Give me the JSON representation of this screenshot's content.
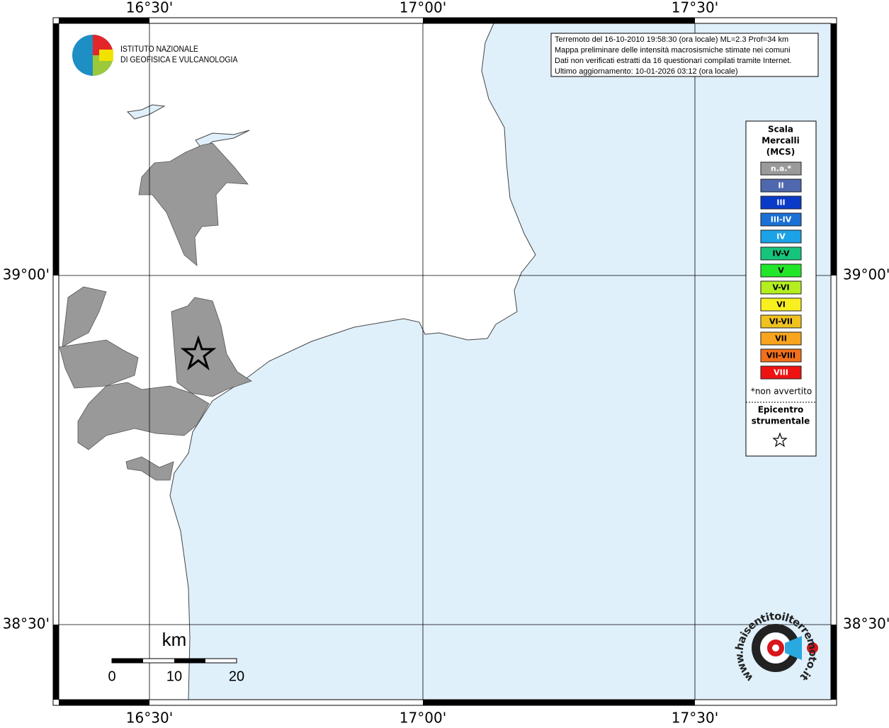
{
  "logo": {
    "lines": [
      "ISTITUTO NAZIONALE",
      "DI GEOFISICA E VULCANOLOGIA"
    ]
  },
  "info": [
    "Terremoto del 16-10-2010 19:58:30 (ora locale) ML=2.3 Prof=34 km",
    "Mappa preliminare delle intensità macrosismiche stimate nei comuni",
    "Dati non verificati estratti da 16 questionari compilati tramite Internet.",
    "Ultimo aggiornamento: 10-01-2026 03:12 (ora locale)"
  ],
  "lon_labels": [
    "16°30'",
    "17°00'",
    "17°30'"
  ],
  "lat_labels": [
    "39°00'",
    "38°30'"
  ],
  "legend": {
    "title": [
      "Scala",
      "Mercalli",
      "(MCS)"
    ],
    "entries": [
      {
        "label": "n.a.*",
        "color": "#9a9a9a"
      },
      {
        "label": "II",
        "color": "#4f68ae"
      },
      {
        "label": "III",
        "color": "#0a3ac8"
      },
      {
        "label": "III-IV",
        "color": "#1a70d4"
      },
      {
        "label": "IV",
        "color": "#1ca2e6"
      },
      {
        "label": "IV-V",
        "color": "#16c47c"
      },
      {
        "label": "V",
        "color": "#22e62a"
      },
      {
        "label": "V-VI",
        "color": "#b4ee1e"
      },
      {
        "label": "VI",
        "color": "#f8f01e"
      },
      {
        "label": "VI-VII",
        "color": "#f0c21e"
      },
      {
        "label": "VII",
        "color": "#f8a41e"
      },
      {
        "label": "VII-VIII",
        "color": "#f2701a"
      },
      {
        "label": "VIII",
        "color": "#ee1212"
      }
    ],
    "note": "*non avvertito",
    "epicenter": [
      "Epicentro",
      "strumentale"
    ]
  },
  "scale_bar": {
    "unit": "km",
    "labels": [
      0,
      10,
      20
    ]
  },
  "site_logo": "www.haisentitoilterremoto.it"
}
